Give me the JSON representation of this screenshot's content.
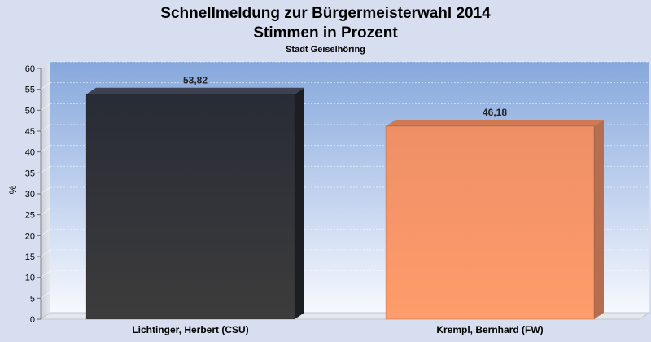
{
  "chart_data": {
    "type": "bar",
    "title_line1": "Schnellmeldung zur Bürgermeisterwahl 2014",
    "title_line2": "Stimmen in Prozent",
    "subtitle": "Stadt Geiselhöring",
    "ylabel": "%",
    "xlabel": "",
    "ylim": [
      0,
      60
    ],
    "yticks": [
      "0",
      "5",
      "10",
      "15",
      "20",
      "25",
      "30",
      "35",
      "40",
      "45",
      "50",
      "55",
      "60"
    ],
    "grid": true,
    "categories": [
      "Lichtinger, Herbert (CSU)",
      "Krempl, Bernhard (FW)"
    ],
    "values": [
      53.82,
      46.18
    ],
    "value_labels": [
      "53,82",
      "46,18"
    ],
    "colors": [
      "#2f3138",
      "#ff9966"
    ]
  }
}
